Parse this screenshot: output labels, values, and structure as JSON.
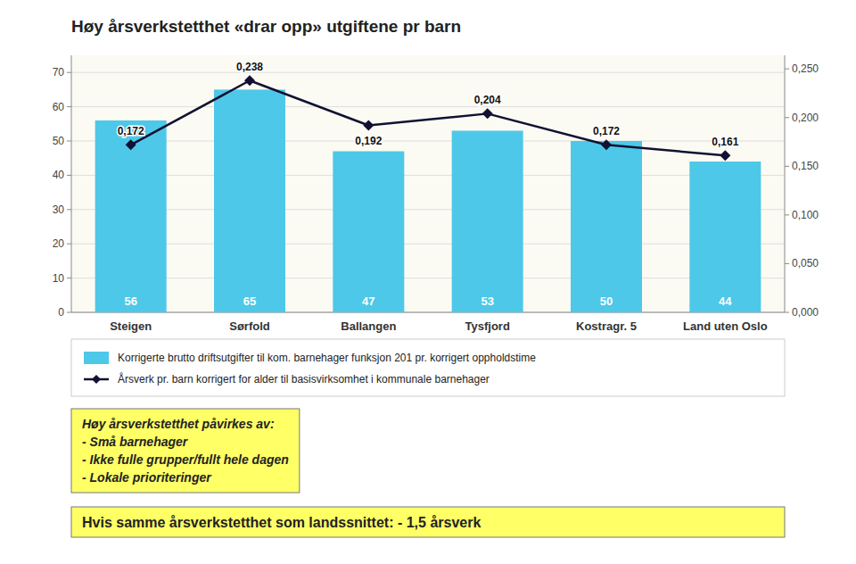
{
  "chart_data": {
    "type": "bar",
    "title": "Høy årsverkstetthet «drar opp» utgiftene pr barn",
    "categories": [
      "Steigen",
      "Sørfold",
      "Ballangen",
      "Tysfjord",
      "Kostragr. 5",
      "Land uten Oslo"
    ],
    "series": [
      {
        "name": "Korrigerte brutto driftsutgifter til kom. barnehager funksjon 201 pr. korrigert oppholdstime",
        "type": "bar",
        "color": "#4DC8E8",
        "data_labels": true,
        "values": [
          56,
          65,
          47,
          53,
          50,
          44
        ]
      },
      {
        "name": "Årsverk pr. barn korrigert for alder til basisvirksomhet i kommunale barnehager",
        "type": "line",
        "axis": "y2",
        "color": "#111133",
        "marker": "diamond",
        "data_labels": true,
        "values": [
          0.172,
          0.238,
          0.192,
          0.204,
          0.172,
          0.161
        ],
        "value_labels": [
          "0,172",
          "0,238",
          "0,192",
          "0,204",
          "0,172",
          "0,161"
        ]
      }
    ],
    "ylim": [
      0,
      75
    ],
    "yticks": [
      0,
      10,
      20,
      30,
      40,
      50,
      60,
      70
    ],
    "y2lim": [
      0,
      0.2639
    ],
    "y2ticks": [
      {
        "value": 0.0,
        "label": "0,000"
      },
      {
        "value": 0.05,
        "label": "0,050"
      },
      {
        "value": 0.1,
        "label": "0,100"
      },
      {
        "value": 0.15,
        "label": "0,150"
      },
      {
        "value": 0.2,
        "label": "0,200"
      },
      {
        "value": 0.25,
        "label": "0,250"
      }
    ],
    "grid": true,
    "legend": "bottom",
    "annotations": [
      "Høy årsverkstetthet påvirkes av:",
      "- Små barnehager",
      "- Ikke fulle grupper/fullt hele dagen",
      "- Lokale prioriteringer"
    ],
    "footnote": "Hvis samme årsverkstetthet som landssnittet: - 1,5 årsverk"
  }
}
